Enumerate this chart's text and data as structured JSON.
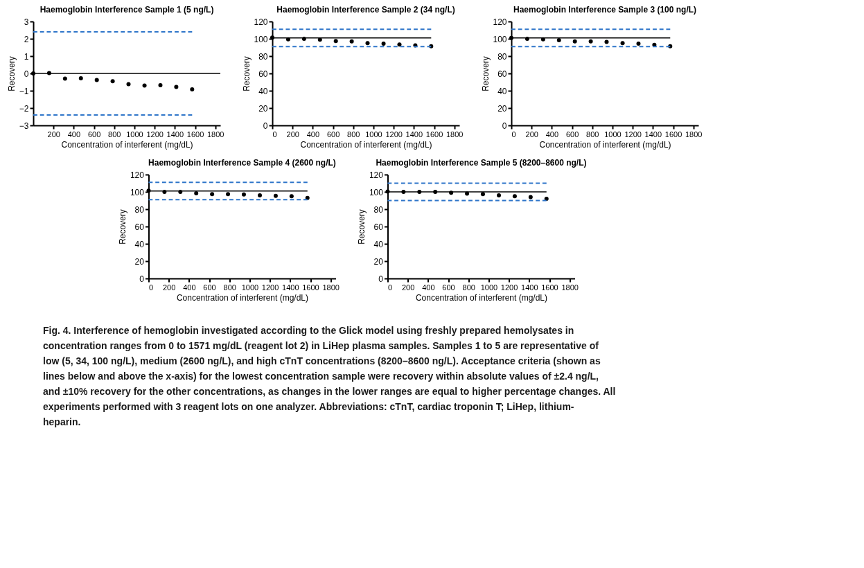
{
  "chart_data": [
    {
      "type": "scatter",
      "title": "Haemoglobin Interference Sample 1 (5 ng/L)",
      "xlabel": "Concentration of interferent (mg/dL)",
      "ylabel": "Recovery",
      "xlim": [
        0,
        1850
      ],
      "xticks": [
        200,
        400,
        600,
        800,
        1000,
        1200,
        1400,
        1600,
        1800
      ],
      "ylim": [
        -3,
        3
      ],
      "yticks": [
        -3,
        -2,
        -1,
        0,
        1,
        2,
        3
      ],
      "grid": false,
      "x": [
        0,
        157,
        314,
        471,
        628,
        785,
        942,
        1100,
        1257,
        1414,
        1571
      ],
      "series": [
        {
          "type": "scatter",
          "marker": "circle",
          "color": "#000000",
          "values": [
            0,
            0.02,
            -0.3,
            -0.28,
            -0.38,
            -0.45,
            -0.62,
            -0.7,
            -0.68,
            -0.78,
            -0.92
          ]
        },
        {
          "type": "line",
          "color": "#000000",
          "line_style": "solid",
          "x": [
            0,
            1850
          ],
          "values": [
            0,
            0
          ]
        },
        {
          "type": "line",
          "color": "#2e75c9",
          "line_style": "dashed",
          "x": [
            0,
            1571
          ],
          "values": [
            2.4,
            2.4
          ]
        },
        {
          "type": "line",
          "color": "#2e75c9",
          "line_style": "dashed",
          "x": [
            0,
            1571
          ],
          "values": [
            -2.4,
            -2.4
          ]
        }
      ]
    },
    {
      "type": "scatter",
      "title": "Haemoglobin Interference Sample 2 (34 ng/L)",
      "xlabel": "Concentration of interferent (mg/dL)",
      "ylabel": "Recovery",
      "xlim": [
        0,
        1850
      ],
      "xticks": [
        0,
        200,
        400,
        600,
        800,
        1000,
        1200,
        1400,
        1600,
        1800
      ],
      "ylim": [
        0,
        120
      ],
      "yticks": [
        0,
        20,
        40,
        60,
        80,
        100,
        120
      ],
      "grid": false,
      "x": [
        0,
        157,
        314,
        471,
        628,
        785,
        942,
        1100,
        1257,
        1414,
        1571
      ],
      "series": [
        {
          "type": "scatter",
          "marker": "circle",
          "color": "#000000",
          "values": [
            101.5,
            99.5,
            100,
            99,
            97.5,
            97,
            95,
            94.5,
            93.5,
            92.5,
            91.5
          ]
        },
        {
          "type": "line",
          "color": "#000000",
          "line_style": "solid",
          "x": [
            0,
            1571
          ],
          "values": [
            101,
            101
          ]
        },
        {
          "type": "line",
          "color": "#2e75c9",
          "line_style": "dashed",
          "x": [
            0,
            1571
          ],
          "values": [
            111,
            111
          ]
        },
        {
          "type": "line",
          "color": "#2e75c9",
          "line_style": "dashed",
          "x": [
            0,
            1571
          ],
          "values": [
            91,
            91
          ]
        }
      ]
    },
    {
      "type": "scatter",
      "title": "Haemoglobin Interference Sample 3 (100 ng/L)",
      "xlabel": "Concentration of interferent (mg/dL)",
      "ylabel": "Recovery",
      "xlim": [
        0,
        1850
      ],
      "xticks": [
        0,
        200,
        400,
        600,
        800,
        1000,
        1200,
        1400,
        1600,
        1800
      ],
      "ylim": [
        0,
        120
      ],
      "yticks": [
        0,
        20,
        40,
        60,
        80,
        100,
        120
      ],
      "grid": false,
      "x": [
        0,
        157,
        314,
        471,
        628,
        785,
        942,
        1100,
        1257,
        1414,
        1571
      ],
      "series": [
        {
          "type": "scatter",
          "marker": "circle",
          "color": "#000000",
          "values": [
            101,
            100,
            99.5,
            98.5,
            97,
            97,
            96.5,
            95,
            94.5,
            93,
            91.5
          ]
        },
        {
          "type": "line",
          "color": "#000000",
          "line_style": "solid",
          "x": [
            0,
            1571
          ],
          "values": [
            101,
            101
          ]
        },
        {
          "type": "line",
          "color": "#2e75c9",
          "line_style": "dashed",
          "x": [
            0,
            1571
          ],
          "values": [
            111,
            111
          ]
        },
        {
          "type": "line",
          "color": "#2e75c9",
          "line_style": "dashed",
          "x": [
            0,
            1571
          ],
          "values": [
            91,
            91
          ]
        }
      ]
    },
    {
      "type": "scatter",
      "title": "Haemoglobin Interference Sample 4 (2600 ng/L)",
      "xlabel": "Concentration of interferent (mg/dL)",
      "ylabel": "Recovery",
      "xlim": [
        0,
        1850
      ],
      "xticks": [
        0,
        200,
        400,
        600,
        800,
        1000,
        1200,
        1400,
        1600,
        1800
      ],
      "ylim": [
        0,
        120
      ],
      "yticks": [
        0,
        20,
        40,
        60,
        80,
        100,
        120
      ],
      "grid": false,
      "x": [
        0,
        157,
        314,
        471,
        628,
        785,
        942,
        1100,
        1257,
        1414,
        1571
      ],
      "series": [
        {
          "type": "scatter",
          "marker": "circle",
          "color": "#000000",
          "values": [
            101.5,
            100,
            100,
            98.5,
            97.5,
            97.5,
            97,
            96,
            95.5,
            95,
            93
          ]
        },
        {
          "type": "line",
          "color": "#000000",
          "line_style": "solid",
          "x": [
            0,
            1571
          ],
          "values": [
            101,
            101
          ]
        },
        {
          "type": "line",
          "color": "#2e75c9",
          "line_style": "dashed",
          "x": [
            0,
            1571
          ],
          "values": [
            111,
            111
          ]
        },
        {
          "type": "line",
          "color": "#2e75c9",
          "line_style": "dashed",
          "x": [
            0,
            1571
          ],
          "values": [
            91,
            91
          ]
        }
      ]
    },
    {
      "type": "scatter",
      "title": "Haemoglobin Interference Sample 5 (8200–8600 ng/L)",
      "xlabel": "Concentration of interferent (mg/dL)",
      "ylabel": "Recovery",
      "xlim": [
        0,
        1850
      ],
      "xticks": [
        0,
        200,
        400,
        600,
        800,
        1000,
        1200,
        1400,
        1600,
        1800
      ],
      "ylim": [
        0,
        120
      ],
      "yticks": [
        0,
        20,
        40,
        60,
        80,
        100,
        120
      ],
      "grid": false,
      "x": [
        0,
        157,
        314,
        471,
        628,
        785,
        942,
        1100,
        1257,
        1414,
        1571
      ],
      "series": [
        {
          "type": "scatter",
          "marker": "circle",
          "color": "#000000",
          "values": [
            100.5,
            100,
            100,
            100,
            99,
            98,
            97.5,
            96,
            95,
            94,
            92
          ]
        },
        {
          "type": "line",
          "color": "#000000",
          "line_style": "solid",
          "x": [
            0,
            1571
          ],
          "values": [
            100,
            100
          ]
        },
        {
          "type": "line",
          "color": "#2e75c9",
          "line_style": "dashed",
          "x": [
            0,
            1571
          ],
          "values": [
            110,
            110
          ]
        },
        {
          "type": "line",
          "color": "#2e75c9",
          "line_style": "dashed",
          "x": [
            0,
            1571
          ],
          "values": [
            90,
            90
          ]
        }
      ]
    },
    {
      "type": "other",
      "annotations": [
        "Fig. 4. Interference of hemoglobin investigated according to the Glick model using freshly prepared hemolysates in concentration ranges from 0 to 1571 mg/dL (reagent lot 2) in LiHep plasma samples. Samples 1 to 5 are representative of low (5, 34, 100 ng/L), medium (2600 ng/L), and high cTnT concentrations (8200–8600 ng/L). Acceptance criteria (shown as lines below and above the x-axis) for the lowest concentration sample were recovery within absolute values of ±2.4 ng/L, and ±10% recovery for the other concentrations, as changes in the lower ranges are equal to higher percentage changes. All experiments performed with 3 reagent lots on one analyzer. Abbreviations: cTnT, cardiac troponin T; LiHep, lithium-heparin."
      ]
    }
  ]
}
